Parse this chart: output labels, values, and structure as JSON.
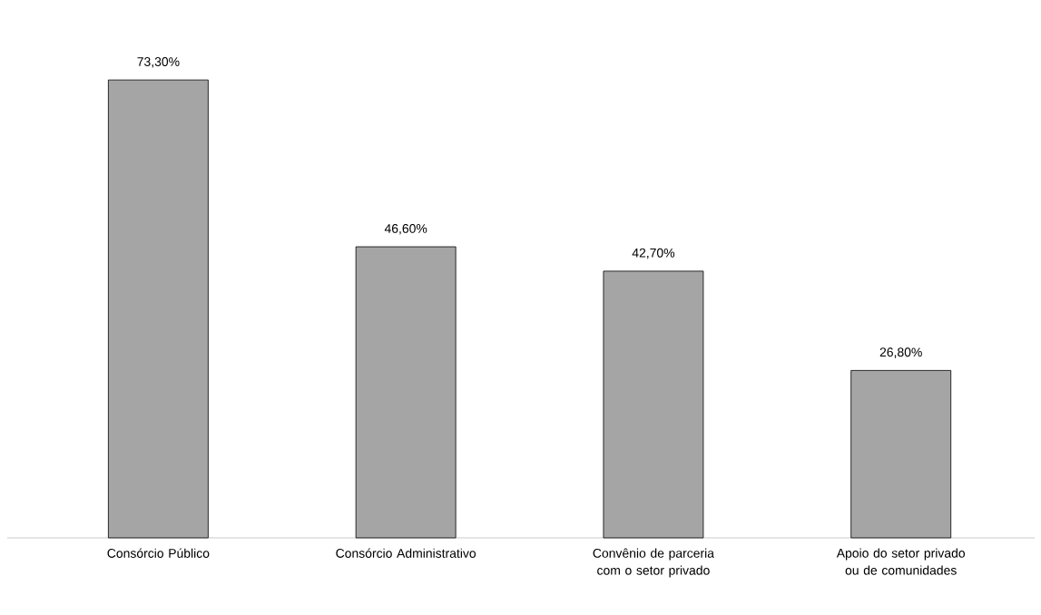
{
  "chart_data": {
    "type": "bar",
    "categories": [
      "Consórcio Público",
      "Consórcio Administrativo",
      "Convênio de parceria com o setor privado",
      "Apoio do setor privado ou de comunidades"
    ],
    "values": [
      73.3,
      46.6,
      42.7,
      26.8
    ],
    "value_labels": [
      "73,30%",
      "46,60%",
      "42,70%",
      "26,80%"
    ],
    "color": "#a5a5a5"
  }
}
